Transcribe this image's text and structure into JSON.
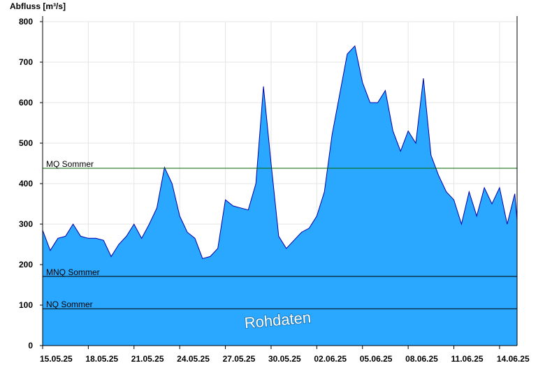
{
  "chart_data": {
    "type": "area",
    "title": "Abfluss [m³/s]",
    "watermark": "Rohdaten",
    "x": [
      0,
      0.5,
      1,
      1.5,
      2,
      2.5,
      3,
      3.5,
      4,
      4.5,
      5,
      5.5,
      6,
      6.5,
      7,
      7.5,
      8,
      8.5,
      9,
      9.5,
      10,
      10.5,
      11,
      11.5,
      12,
      12.5,
      13,
      13.5,
      14,
      14.5,
      15,
      15.5,
      16,
      16.5,
      17,
      17.5,
      18,
      18.5,
      19,
      19.5,
      20,
      20.5,
      21,
      21.5,
      22,
      22.5,
      23,
      23.5,
      24,
      24.5,
      25,
      25.5,
      26,
      26.5,
      27,
      27.5,
      28,
      28.5,
      29,
      29.5,
      30,
      30.5,
      31,
      31.15
    ],
    "values": [
      285,
      235,
      265,
      270,
      300,
      270,
      265,
      265,
      260,
      220,
      250,
      270,
      300,
      265,
      300,
      340,
      440,
      400,
      320,
      280,
      265,
      215,
      220,
      240,
      360,
      345,
      340,
      335,
      400,
      640,
      450,
      270,
      240,
      260,
      280,
      290,
      320,
      380,
      520,
      620,
      720,
      740,
      650,
      600,
      600,
      630,
      530,
      480,
      530,
      500,
      660,
      470,
      420,
      380,
      360,
      300,
      380,
      320,
      390,
      350,
      390,
      300,
      375,
      310
    ],
    "color": "#2aa7ff",
    "line_color": "#0000aa",
    "xlim": [
      0,
      31.15
    ],
    "xticks": [
      {
        "value": 0,
        "label": "15.05.25"
      },
      {
        "value": 3,
        "label": "18.05.25"
      },
      {
        "value": 6,
        "label": "21.05.25"
      },
      {
        "value": 9,
        "label": "24.05.25"
      },
      {
        "value": 12,
        "label": "27.05.25"
      },
      {
        "value": 15,
        "label": "30.05.25"
      },
      {
        "value": 18,
        "label": "02.06.25"
      },
      {
        "value": 21,
        "label": "05.06.25"
      },
      {
        "value": 24,
        "label": "08.06.25"
      },
      {
        "value": 27,
        "label": "11.06.25"
      },
      {
        "value": 30,
        "label": "14.06.25"
      }
    ],
    "ylim": [
      0,
      800
    ],
    "yticks": [
      0,
      100,
      200,
      300,
      400,
      500,
      600,
      700,
      800
    ],
    "grid": true,
    "reference_lines": [
      {
        "name": "MQ Sommer",
        "value": 438,
        "color": "#006600"
      },
      {
        "name": "MNQ Sommer",
        "value": 171,
        "color": "#000000"
      },
      {
        "name": "NQ Sommer",
        "value": 91,
        "color": "#000000"
      }
    ]
  }
}
